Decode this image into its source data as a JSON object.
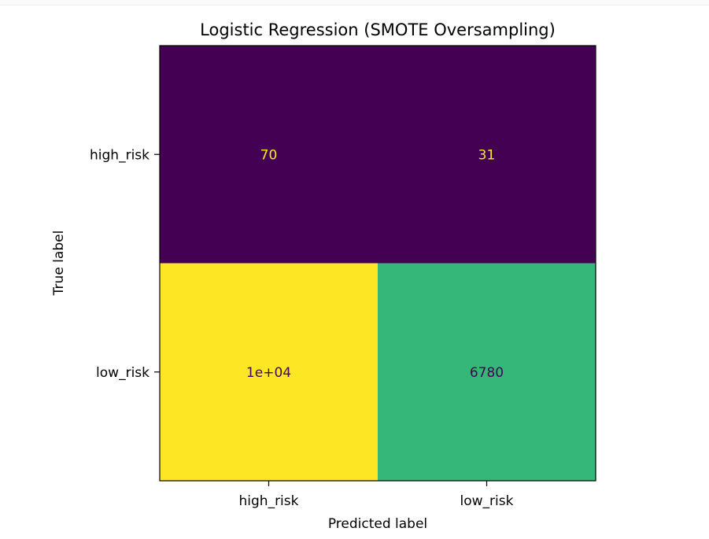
{
  "chart_data": {
    "type": "heatmap",
    "title": "Logistic Regression (SMOTE Oversampling)",
    "xlabel": "Predicted label",
    "ylabel": "True label",
    "x_categories": [
      "high_risk",
      "low_risk"
    ],
    "y_categories": [
      "high_risk",
      "low_risk"
    ],
    "values": [
      [
        70,
        31
      ],
      [
        10000,
        6780
      ]
    ],
    "cell_labels": [
      [
        "70",
        "31"
      ],
      [
        "1e+04",
        "6780"
      ]
    ],
    "colormap": "viridis",
    "colorbar": false,
    "grid": false,
    "cell_colors": [
      [
        "#440154",
        "#440154"
      ],
      [
        "#fde725",
        "#35b779"
      ]
    ],
    "cell_text_colors": [
      [
        "#fde725",
        "#fde725"
      ],
      [
        "#440154",
        "#440154"
      ]
    ]
  }
}
